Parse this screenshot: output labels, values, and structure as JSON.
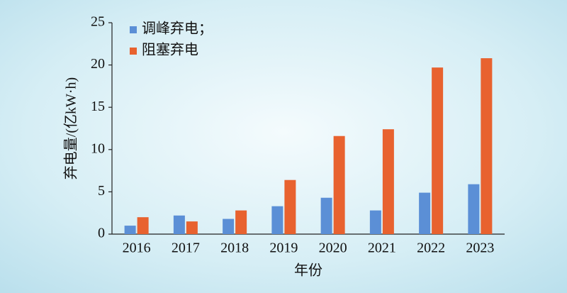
{
  "chart_data": {
    "type": "bar",
    "y_label": "弃电量/(亿kW·h)",
    "x_label": "年份",
    "categories": [
      "2016",
      "2017",
      "2018",
      "2019",
      "2020",
      "2021",
      "2022",
      "2023"
    ],
    "series": [
      {
        "name": "调峰弃电；",
        "color": "#5b8fd6",
        "values": [
          1.0,
          2.2,
          1.8,
          3.3,
          4.3,
          2.8,
          4.9,
          5.9
        ]
      },
      {
        "name": "阻塞弃电",
        "color": "#e8622f",
        "values": [
          2.0,
          1.5,
          2.8,
          6.4,
          11.6,
          12.4,
          19.7,
          20.8
        ]
      }
    ],
    "ylim": [
      0,
      25
    ],
    "yticks": [
      0,
      5,
      10,
      15,
      20,
      25
    ],
    "legend": "upper-left"
  }
}
